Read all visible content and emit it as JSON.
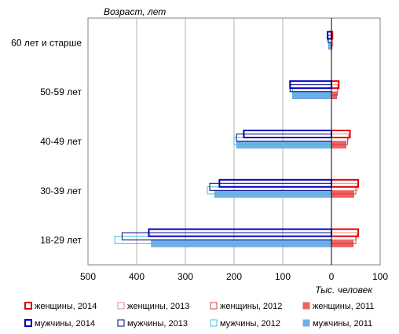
{
  "chart_data": {
    "type": "bar",
    "orientation": "horizontal",
    "title": "",
    "ylabel": "Возраст, лет",
    "xlabel": "Тыс. человек",
    "categories": [
      "60 лет и старше",
      "50-59 лет",
      "40-49 лет",
      "30-39 лет",
      "18-29 лет"
    ],
    "xlim": [
      -500,
      100
    ],
    "x_ticks": [
      -500,
      -400,
      -300,
      -200,
      -100,
      0,
      100
    ],
    "x_tick_labels": [
      "500",
      "400",
      "300",
      "200",
      "100",
      "0",
      "100"
    ],
    "grid": true,
    "legend_position": "bottom",
    "series": [
      {
        "name": "женщины, 2014",
        "group": "women",
        "style": "outline-thick",
        "color": "#e00000",
        "values": [
          2,
          15,
          38,
          55,
          55
        ]
      },
      {
        "name": "женщины, 2013",
        "group": "women",
        "style": "outline-thin",
        "color": "#e88888",
        "values": [
          2,
          13,
          35,
          53,
          52
        ]
      },
      {
        "name": "женщины, 2012",
        "group": "women",
        "style": "outline-thin",
        "color": "#d04040",
        "values": [
          2,
          12,
          33,
          50,
          50
        ]
      },
      {
        "name": "женщины, 2011",
        "group": "women",
        "style": "filled",
        "color": "#f06060",
        "values": [
          1,
          11,
          30,
          46,
          45
        ]
      },
      {
        "name": "мужчины, 2014",
        "group": "men",
        "style": "outline-thick",
        "color": "#0000c0",
        "values": [
          -8,
          -85,
          -180,
          -230,
          -375
        ]
      },
      {
        "name": "мужчины, 2013",
        "group": "men",
        "style": "outline-thin",
        "color": "#000080",
        "values": [
          -7,
          -85,
          -195,
          -250,
          -430
        ]
      },
      {
        "name": "мужчины, 2012",
        "group": "men",
        "style": "outline-thin",
        "color": "#40c0d0",
        "values": [
          -6,
          -80,
          -200,
          -255,
          -445
        ]
      },
      {
        "name": "мужчины, 2011",
        "group": "men",
        "style": "filled",
        "color": "#70b0e8",
        "values": [
          -6,
          -80,
          -195,
          -240,
          -370
        ]
      }
    ]
  }
}
